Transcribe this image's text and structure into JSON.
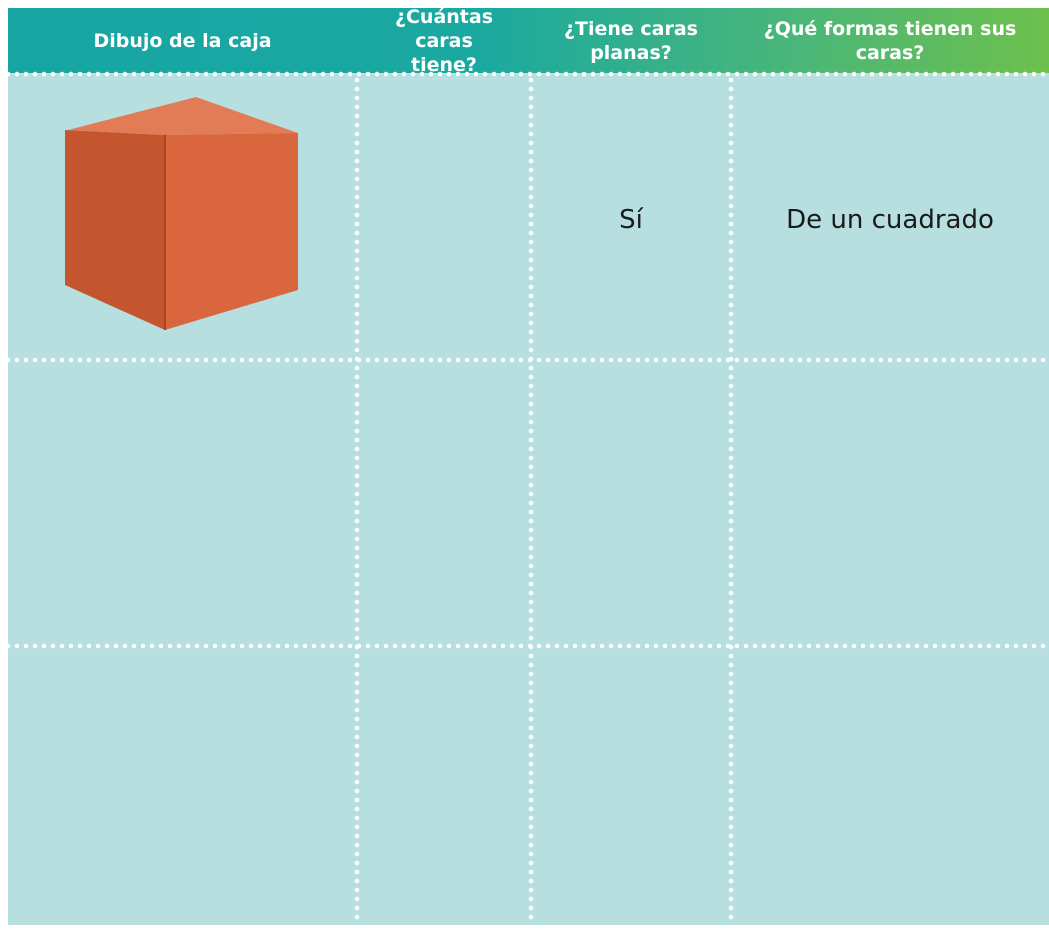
{
  "table": {
    "columns": [
      "Dibujo de la caja",
      "¿Cuántas caras tiene?",
      "¿Tiene caras planas?",
      "¿Qué formas tienen sus caras?"
    ],
    "rows": [
      {
        "flat_faces": "Sí",
        "face_shape": "De un cuadrado"
      }
    ]
  }
}
